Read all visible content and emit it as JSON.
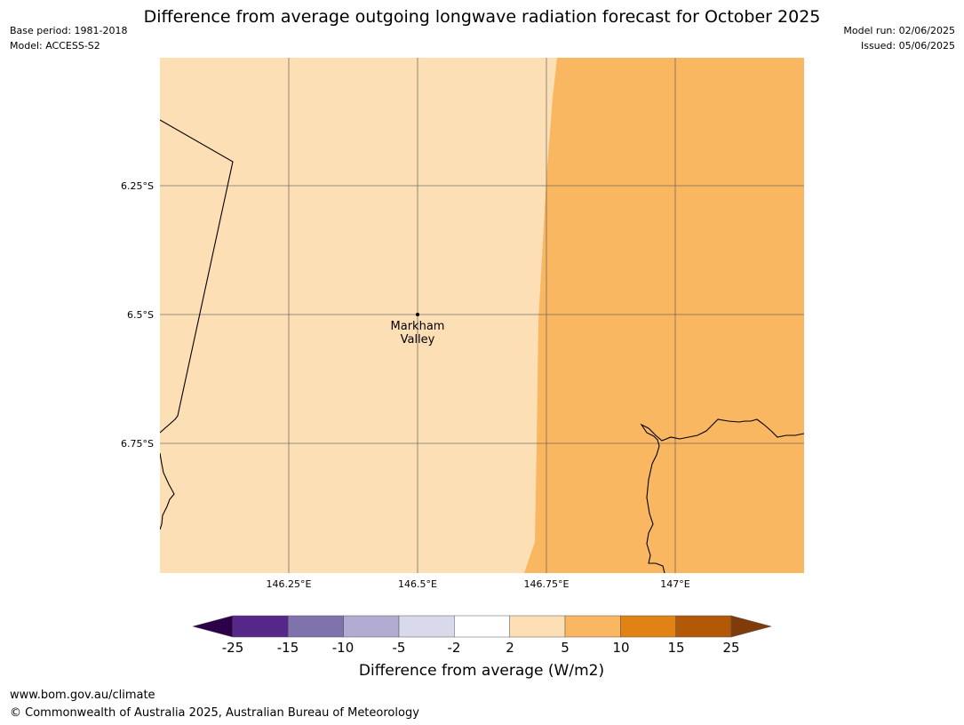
{
  "header": {
    "title": "Difference from average outgoing longwave radiation forecast for October 2025",
    "base_period": "Base period: 1981-2018",
    "model": "Model: ACCESS-S2",
    "model_run": "Model run: 02/06/2025",
    "issued": "Issued: 05/06/2025"
  },
  "map": {
    "lat_ticks": [
      "6.25°S",
      "6.5°S",
      "6.75°S"
    ],
    "lon_ticks": [
      "146.25°E",
      "146.5°E",
      "146.75°E",
      "147°E"
    ],
    "place": {
      "name_line1": "Markham",
      "name_line2": "Valley"
    },
    "regions": [
      {
        "category": "2 to 5",
        "color": "#fddfb5"
      },
      {
        "category": "5 to 10",
        "color": "#fab762"
      }
    ]
  },
  "colorbar": {
    "label": "Difference from average (W/m2)",
    "ticks": [
      "-25",
      "-15",
      "-10",
      "-5",
      "-2",
      "2",
      "5",
      "10",
      "15",
      "25"
    ],
    "under_color": "#2d004b",
    "over_color": "#7f3b08",
    "colors": [
      "#542788",
      "#8073ac",
      "#b2abd2",
      "#d8daeb",
      "#ffffff",
      "#fddfb5",
      "#fab762",
      "#e08214",
      "#b35806"
    ]
  },
  "footer": {
    "url": "www.bom.gov.au/climate",
    "copyright": "© Commonwealth of Australia 2025, Australian Bureau of Meteorology"
  }
}
